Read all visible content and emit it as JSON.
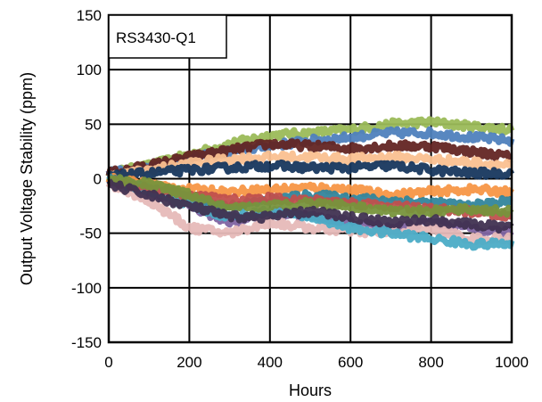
{
  "chart_data": {
    "type": "line",
    "title": "",
    "annotation": "RS3430-Q1",
    "xlabel": "Hours",
    "ylabel": "Output Voltage Stability (ppm)",
    "xlim": [
      0,
      1000
    ],
    "ylim": [
      -150,
      150
    ],
    "x_ticks": [
      0,
      200,
      400,
      600,
      800,
      1000
    ],
    "y_ticks": [
      -150,
      -100,
      -50,
      0,
      50,
      100,
      150
    ],
    "x_tick_labels": [
      "0",
      "200",
      "400",
      "600",
      "800",
      "1000"
    ],
    "y_tick_labels": [
      "-150",
      "-100",
      "-50",
      "0",
      "50",
      "100",
      "150"
    ],
    "grid": true,
    "legend": "none",
    "x": [
      0,
      100,
      200,
      300,
      400,
      500,
      600,
      700,
      800,
      900,
      1000
    ],
    "series": [
      {
        "color": "#9bbb59",
        "values": [
          5,
          12,
          22,
          32,
          40,
          42,
          45,
          50,
          52,
          48,
          45
        ]
      },
      {
        "color": "#4f81bd",
        "values": [
          5,
          10,
          18,
          25,
          30,
          35,
          38,
          42,
          42,
          38,
          35
        ]
      },
      {
        "color": "#632523",
        "values": [
          5,
          12,
          20,
          26,
          32,
          30,
          28,
          30,
          30,
          25,
          20
        ]
      },
      {
        "color": "#fac090",
        "values": [
          2,
          8,
          14,
          18,
          20,
          20,
          18,
          20,
          18,
          15,
          12
        ]
      },
      {
        "color": "#17375e",
        "values": [
          2,
          5,
          8,
          10,
          12,
          10,
          10,
          12,
          8,
          5,
          5
        ]
      },
      {
        "color": "#f79646",
        "values": [
          0,
          -5,
          -10,
          -12,
          -10,
          -8,
          -10,
          -15,
          -12,
          -10,
          -12
        ]
      },
      {
        "color": "#31859c",
        "values": [
          0,
          -10,
          -20,
          -25,
          -20,
          -15,
          -18,
          -20,
          -22,
          -25,
          -20
        ]
      },
      {
        "color": "#8064a2",
        "values": [
          -2,
          -15,
          -25,
          -40,
          -30,
          -35,
          -40,
          -45,
          -40,
          -45,
          -50
        ]
      },
      {
        "color": "#e6b9b8",
        "values": [
          -5,
          -20,
          -45,
          -50,
          -40,
          -45,
          -48,
          -50,
          -45,
          -55,
          -55
        ]
      },
      {
        "color": "#4bacc6",
        "values": [
          -2,
          -10,
          -25,
          -35,
          -30,
          -35,
          -45,
          -50,
          -55,
          -60,
          -60
        ]
      },
      {
        "color": "#c0504d",
        "values": [
          -2,
          -8,
          -15,
          -20,
          -18,
          -20,
          -22,
          -25,
          -28,
          -30,
          -35
        ]
      },
      {
        "color": "#77933c",
        "values": [
          0,
          -5,
          -15,
          -28,
          -25,
          -22,
          -25,
          -30,
          -30,
          -28,
          -30
        ]
      },
      {
        "color": "#403151",
        "values": [
          -5,
          -15,
          -25,
          -35,
          -35,
          -30,
          -35,
          -40,
          -38,
          -42,
          -45
        ]
      }
    ]
  }
}
